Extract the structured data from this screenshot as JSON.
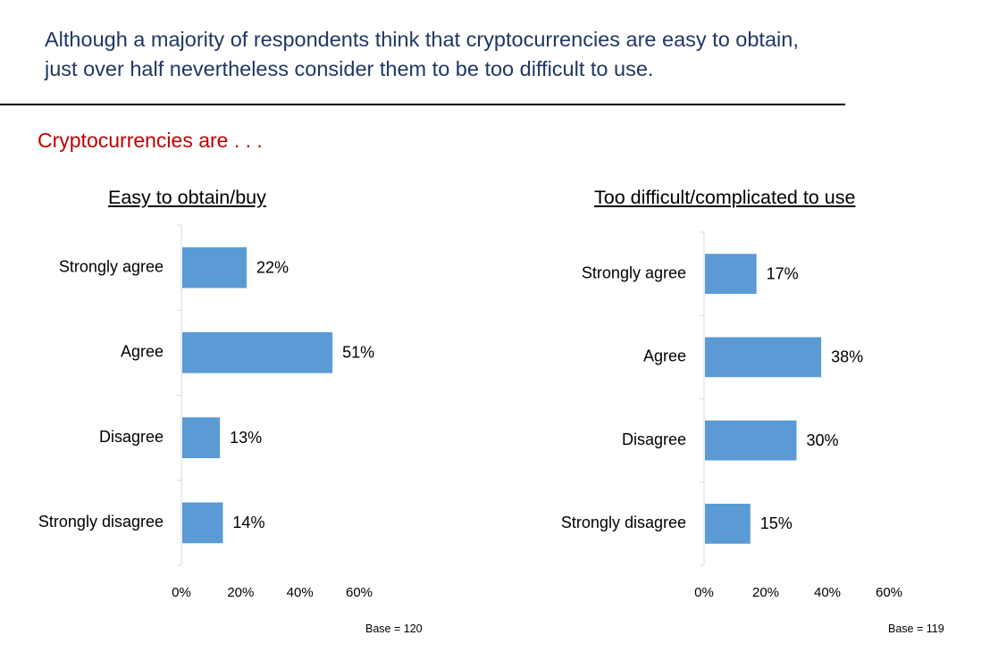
{
  "headline": {
    "line1": "Although a majority of respondents think that cryptocurrencies are easy to obtain,",
    "line2": "just over half nevertheless consider them to be too difficult to use."
  },
  "subhead": "Cryptocurrencies are . . .",
  "colors": {
    "bar": "#5b9bd5",
    "headline": "#1f3864",
    "subhead": "#c00000",
    "axis": "#d9d9d9"
  },
  "chart_data": [
    {
      "type": "bar",
      "orientation": "horizontal",
      "title": "Easy to obtain/buy",
      "categories": [
        "Strongly agree",
        "Agree",
        "Disagree",
        "Strongly disagree"
      ],
      "values": [
        22,
        51,
        13,
        14
      ],
      "value_labels": [
        "22%",
        "51%",
        "13%",
        "14%"
      ],
      "xlim": [
        0,
        60
      ],
      "xticks": [
        "0%",
        "20%",
        "40%",
        "60%"
      ],
      "note": "Base = 120"
    },
    {
      "type": "bar",
      "orientation": "horizontal",
      "title": "Too difficult/complicated to use",
      "categories": [
        "Strongly agree",
        "Agree",
        "Disagree",
        "Strongly disagree"
      ],
      "values": [
        17,
        38,
        30,
        15
      ],
      "value_labels": [
        "17%",
        "38%",
        "30%",
        "15%"
      ],
      "xlim": [
        0,
        60
      ],
      "xticks": [
        "0%",
        "20%",
        "40%",
        "60%"
      ],
      "note": "Base = 119"
    }
  ]
}
